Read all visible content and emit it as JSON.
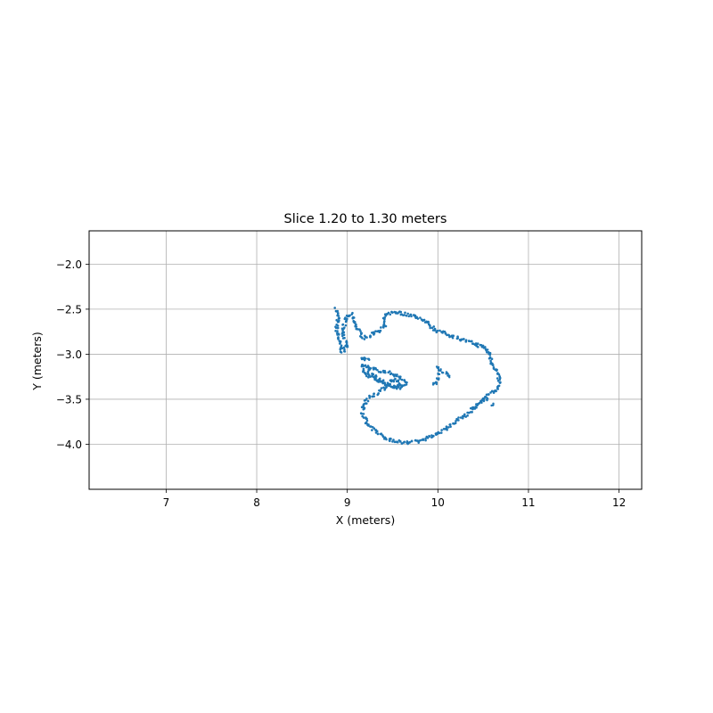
{
  "chart_data": {
    "type": "scatter",
    "title": "Slice 1.20 to 1.30 meters",
    "xlabel": "X (meters)",
    "ylabel": "Y (meters)",
    "xlim": [
      6.15,
      12.25
    ],
    "ylim": [
      -4.5,
      -1.63
    ],
    "xticks": [
      7,
      8,
      9,
      10,
      11,
      12
    ],
    "xtick_labels": [
      "7",
      "8",
      "9",
      "10",
      "11",
      "12"
    ],
    "yticks": [
      -2.0,
      -2.5,
      -3.0,
      -3.5,
      -4.0
    ],
    "ytick_labels": [
      "−2.0",
      "−2.5",
      "−3.0",
      "−3.5",
      "−4.0"
    ],
    "grid": true,
    "marker_color": "#1f77b4",
    "series": [
      {
        "name": "",
        "outline": [
          [
            8.88,
            -2.5
          ],
          [
            8.9,
            -2.6
          ],
          [
            8.88,
            -2.7
          ],
          [
            8.9,
            -2.8
          ],
          [
            8.92,
            -2.9
          ],
          [
            8.94,
            -2.97
          ],
          [
            8.97,
            -2.95
          ],
          [
            9.0,
            -2.9
          ],
          [
            8.96,
            -2.8
          ],
          [
            8.96,
            -2.7
          ],
          [
            8.99,
            -2.58
          ],
          [
            9.04,
            -2.56
          ],
          [
            9.07,
            -2.62
          ],
          [
            9.1,
            -2.7
          ],
          [
            9.15,
            -2.78
          ],
          [
            9.2,
            -2.82
          ],
          [
            9.26,
            -2.8
          ],
          [
            9.3,
            -2.76
          ],
          [
            9.36,
            -2.73
          ],
          [
            9.41,
            -2.7
          ],
          [
            9.4,
            -2.6
          ],
          [
            9.44,
            -2.55
          ],
          [
            9.52,
            -2.53
          ],
          [
            9.62,
            -2.55
          ],
          [
            9.72,
            -2.57
          ],
          [
            9.8,
            -2.6
          ],
          [
            9.88,
            -2.65
          ],
          [
            9.93,
            -2.7
          ],
          [
            10.0,
            -2.74
          ],
          [
            10.1,
            -2.78
          ],
          [
            10.2,
            -2.81
          ],
          [
            10.3,
            -2.85
          ],
          [
            10.42,
            -2.89
          ],
          [
            10.52,
            -2.93
          ],
          [
            10.57,
            -3.0
          ],
          [
            10.59,
            -3.08
          ],
          [
            10.63,
            -3.15
          ],
          [
            10.67,
            -3.25
          ],
          [
            10.68,
            -3.33
          ],
          [
            10.64,
            -3.4
          ],
          [
            10.58,
            -3.43
          ],
          [
            10.52,
            -3.48
          ],
          [
            10.45,
            -3.56
          ],
          [
            10.37,
            -3.62
          ],
          [
            10.3,
            -3.68
          ],
          [
            10.22,
            -3.73
          ],
          [
            10.15,
            -3.78
          ],
          [
            10.08,
            -3.83
          ],
          [
            10.0,
            -3.88
          ],
          [
            9.92,
            -3.92
          ],
          [
            9.84,
            -3.95
          ],
          [
            9.75,
            -3.97
          ],
          [
            9.65,
            -3.98
          ],
          [
            9.55,
            -3.97
          ],
          [
            9.45,
            -3.94
          ],
          [
            9.36,
            -3.89
          ],
          [
            9.28,
            -3.83
          ],
          [
            9.22,
            -3.76
          ],
          [
            9.19,
            -3.7
          ],
          [
            9.17,
            -3.64
          ],
          [
            9.18,
            -3.56
          ],
          [
            9.22,
            -3.5
          ],
          [
            9.28,
            -3.46
          ],
          [
            9.34,
            -3.42
          ],
          [
            9.4,
            -3.38
          ],
          [
            9.45,
            -3.34
          ],
          [
            9.48,
            -3.3
          ],
          [
            9.52,
            -3.28
          ],
          [
            9.56,
            -3.3
          ],
          [
            9.58,
            -3.35
          ],
          [
            9.54,
            -3.37
          ],
          [
            9.48,
            -3.35
          ],
          [
            9.42,
            -3.32
          ],
          [
            9.36,
            -3.28
          ],
          [
            9.3,
            -3.24
          ],
          [
            9.25,
            -3.22
          ],
          [
            9.22,
            -3.18
          ],
          [
            9.27,
            -3.16
          ],
          [
            9.35,
            -3.18
          ],
          [
            9.43,
            -3.2
          ],
          [
            9.5,
            -3.22
          ],
          [
            9.56,
            -3.25
          ],
          [
            9.61,
            -3.28
          ],
          [
            9.66,
            -3.32
          ],
          [
            9.63,
            -3.36
          ],
          [
            9.57,
            -3.37
          ],
          [
            9.5,
            -3.36
          ],
          [
            9.43,
            -3.34
          ],
          [
            9.36,
            -3.31
          ],
          [
            9.29,
            -3.27
          ],
          [
            9.23,
            -3.23
          ],
          [
            9.18,
            -3.19
          ],
          [
            9.16,
            -3.15
          ],
          [
            9.19,
            -3.12
          ],
          [
            9.22,
            -3.14
          ],
          [
            9.25,
            -3.17
          ]
        ],
        "fragments": [
          [
            9.16,
            -3.05
          ],
          [
            9.18,
            -3.05
          ],
          [
            9.2,
            -3.06
          ],
          [
            9.24,
            -3.05
          ],
          [
            10.0,
            -3.15
          ],
          [
            10.02,
            -3.18
          ],
          [
            10.01,
            -3.22
          ],
          [
            10.0,
            -3.27
          ],
          [
            9.98,
            -3.32
          ],
          [
            9.96,
            -3.33
          ],
          [
            10.05,
            -3.2
          ],
          [
            10.1,
            -3.21
          ],
          [
            10.12,
            -3.25
          ],
          [
            10.5,
            -3.52
          ],
          [
            10.45,
            -3.55
          ],
          [
            10.38,
            -3.6
          ],
          [
            10.6,
            -3.56
          ],
          [
            10.55,
            -3.5
          ]
        ]
      }
    ]
  }
}
